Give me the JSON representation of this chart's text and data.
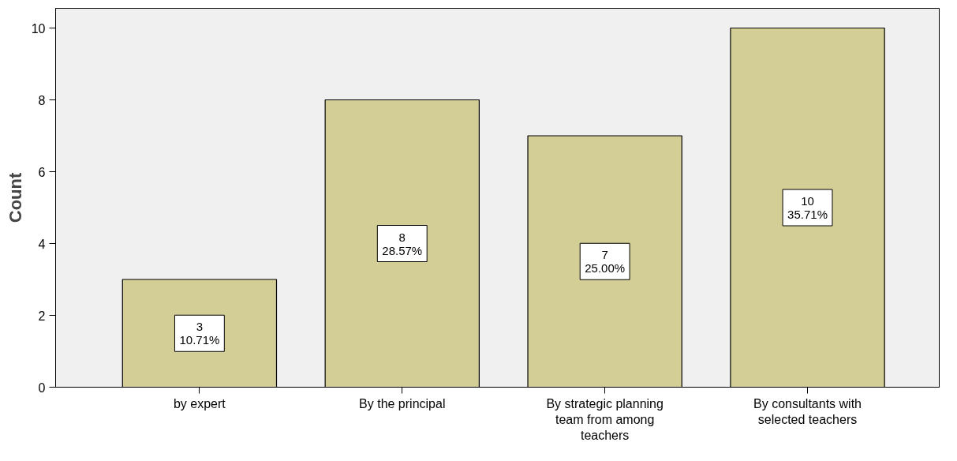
{
  "chart_data": {
    "type": "bar",
    "ylabel": "Count",
    "categories": [
      "by expert",
      "By the principal",
      "By strategic planning team from among teachers",
      "By consultants with selected teachers"
    ],
    "values": [
      3,
      8,
      7,
      10
    ],
    "value_labels": [
      "3\n10.71%",
      "8\n28.57%",
      "7\n25.00%",
      "10\n35.71%"
    ],
    "color": "#d3ce96",
    "ylim": [
      0,
      10.55
    ],
    "yticks": [
      0,
      2,
      4,
      6,
      8,
      10
    ],
    "grid": false
  }
}
